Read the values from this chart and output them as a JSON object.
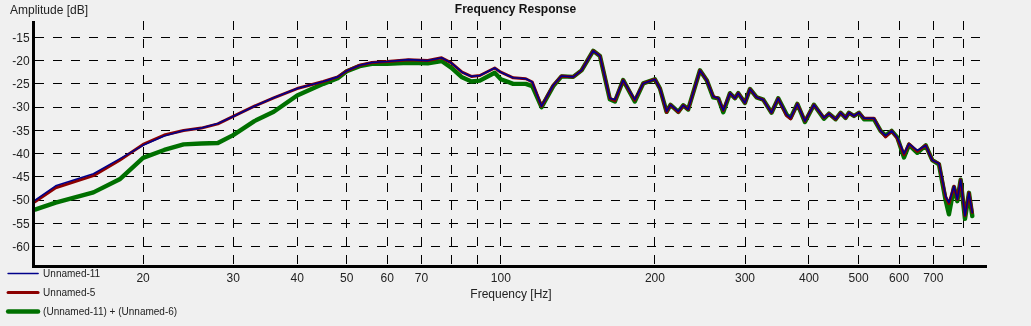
{
  "chart_data": {
    "type": "line",
    "title": "Frequency Response",
    "xlabel": "Frequency [Hz]",
    "ylabel": "Amplitude [dB]",
    "log": "x",
    "grid": true,
    "legend": "bottom left",
    "line_style": "solid",
    "marker": "none",
    "xlim": [
      12.3,
      891
    ],
    "ylim": [
      -63.9,
      -11.5
    ],
    "xticks": [
      20,
      30,
      40,
      50,
      60,
      70,
      {
        "value": 80,
        "label": null
      },
      {
        "value": 90,
        "label": null
      },
      100,
      200,
      300,
      400,
      500,
      600,
      700,
      {
        "value": 800,
        "label": null
      }
    ],
    "yticks": [
      -15,
      -20,
      -25,
      -30,
      -35,
      -40,
      -45,
      -50,
      -55,
      -60
    ],
    "x": [
      12.3,
      13.5,
      16,
      18,
      20,
      22,
      24,
      26,
      28,
      30,
      33,
      36,
      40,
      45,
      48,
      50,
      53,
      56,
      60,
      66,
      72,
      76.6,
      80,
      84,
      87.6,
      91,
      97.3,
      100,
      105.7,
      111.9,
      115.2,
      120.1,
      126.6,
      131.4,
      138.5,
      143.8,
      151.5,
      156.2,
      163.3,
      167.1,
      173.4,
      182.7,
      189.8,
      200,
      204.6,
      210.8,
      214.6,
      222.2,
      227.2,
      232.3,
      244.9,
      252.5,
      260,
      266,
      272,
      280.3,
      286.7,
      291,
      299.9,
      306.7,
      316.1,
      325.6,
      338,
      348.3,
      361.7,
      368.3,
      379.6,
      392.9,
      409,
      427.9,
      437.6,
      451,
      461.2,
      471.7,
      478.8,
      489.8,
      500.9,
      512.3,
      535.8,
      552.1,
      564.7,
      580.1,
      595.1,
      613.4,
      627.3,
      651.3,
      676.3,
      696.6,
      717.9,
      739.7,
      750.8,
      768,
      779.6,
      791.4,
      807,
      821.6,
      834
    ],
    "series": [
      {
        "name": "Unnamed-11",
        "color": "#00008b",
        "values": [
          -50,
          -46.9,
          -44.3,
          -41.1,
          -38.2,
          -36.2,
          -35,
          -34.5,
          -33.5,
          -32,
          -29.8,
          -28,
          -26,
          -24.5,
          -23.5,
          -22.2,
          -21,
          -20.4,
          -20.2,
          -19.8,
          -20,
          -19.4,
          -20.5,
          -22.5,
          -23.4,
          -23.2,
          -21.6,
          -22.5,
          -23.7,
          -23.9,
          -24.6,
          -29.8,
          -25.3,
          -23.3,
          -23.5,
          -22.1,
          -17.9,
          -19,
          -28.1,
          -28.4,
          -24.2,
          -28.4,
          -24.9,
          -24,
          -26,
          -30.9,
          -29.5,
          -30.9,
          -29.6,
          -30.5,
          -22.1,
          -24.2,
          -27.7,
          -28.1,
          -30.7,
          -27,
          -28.1,
          -27,
          -29.1,
          -26.1,
          -27.9,
          -28.4,
          -31.2,
          -28.1,
          -31.6,
          -32.3,
          -29.3,
          -33,
          -29.5,
          -32.3,
          -31.4,
          -32.6,
          -31.2,
          -32.3,
          -31.2,
          -31.9,
          -31.2,
          -32.4,
          -32.4,
          -35.1,
          -36.1,
          -35.1,
          -36.5,
          -40,
          -37.9,
          -39.3,
          -38.2,
          -41.4,
          -42.1,
          -49.1,
          -50.5,
          -47,
          -49.8,
          -45.6,
          -53.3,
          -48.4,
          -52.6
        ]
      },
      {
        "name": "Unnamed-5",
        "color": "#8b0000",
        "values": [
          -50.3,
          -47.3,
          -44.7,
          -41.4,
          -38,
          -36,
          -35,
          -34.5,
          -33.6,
          -32,
          -29.8,
          -28,
          -26,
          -24.5,
          -23.5,
          -22.2,
          -21,
          -20.4,
          -20.2,
          -19.8,
          -20,
          -19.4,
          -20.5,
          -22.5,
          -23.4,
          -23.2,
          -21.6,
          -22.5,
          -23.7,
          -23.9,
          -24.6,
          -29.8,
          -25.3,
          -23.3,
          -23.5,
          -22.1,
          -17.9,
          -19,
          -28.1,
          -28.6,
          -24.2,
          -28.5,
          -24.9,
          -24,
          -26,
          -31.1,
          -29.5,
          -31.1,
          -29.6,
          -30.5,
          -22.1,
          -24.2,
          -27.7,
          -28.1,
          -30.7,
          -27,
          -28.1,
          -27,
          -29.1,
          -26.1,
          -27.9,
          -28.4,
          -31.2,
          -28.1,
          -31.8,
          -32.5,
          -29.3,
          -33,
          -29.5,
          -32.3,
          -31.4,
          -32.6,
          -31.2,
          -32.3,
          -31.2,
          -31.9,
          -31.2,
          -32.4,
          -32.4,
          -35.1,
          -36.4,
          -35.1,
          -36.7,
          -40.2,
          -37.9,
          -39.5,
          -38.2,
          -41.4,
          -42.1,
          -49.3,
          -50.7,
          -47,
          -49.8,
          -45.6,
          -53.3,
          -48.4,
          -52.6
        ]
      },
      {
        "name": "(Unnamed-11) + (Unnamed-6)",
        "color": "#007000",
        "values": [
          -52,
          -50.5,
          -48.3,
          -45.5,
          -40.9,
          -39.2,
          -38,
          -37.8,
          -37.7,
          -36,
          -33,
          -31,
          -27.5,
          -25,
          -23.8,
          -22.3,
          -21.2,
          -20.7,
          -20.7,
          -20.5,
          -20.6,
          -20.1,
          -21.5,
          -23.6,
          -24.5,
          -24.3,
          -22.6,
          -24,
          -25,
          -25,
          -25.5,
          -30,
          -25.5,
          -23.4,
          -23.5,
          -22.1,
          -17.9,
          -19,
          -28.3,
          -28.8,
          -24.2,
          -28.8,
          -24.9,
          -24,
          -26,
          -31,
          -29.5,
          -31,
          -29.6,
          -30.5,
          -22.1,
          -24.2,
          -27.9,
          -28.1,
          -31.1,
          -27,
          -28.1,
          -27,
          -29.1,
          -26.1,
          -27.9,
          -28.4,
          -31.2,
          -28.1,
          -31.6,
          -32.3,
          -29.3,
          -33.2,
          -29.5,
          -32.5,
          -31.4,
          -32.6,
          -31.2,
          -32.3,
          -31.2,
          -31.9,
          -31.2,
          -32.6,
          -32.6,
          -35.1,
          -36.1,
          -35.1,
          -36.5,
          -40.8,
          -38.1,
          -39.8,
          -38.2,
          -41.4,
          -42.3,
          -50,
          -53,
          -47.2,
          -50.2,
          -45.6,
          -54,
          -48.4,
          -53.4
        ]
      }
    ]
  }
}
